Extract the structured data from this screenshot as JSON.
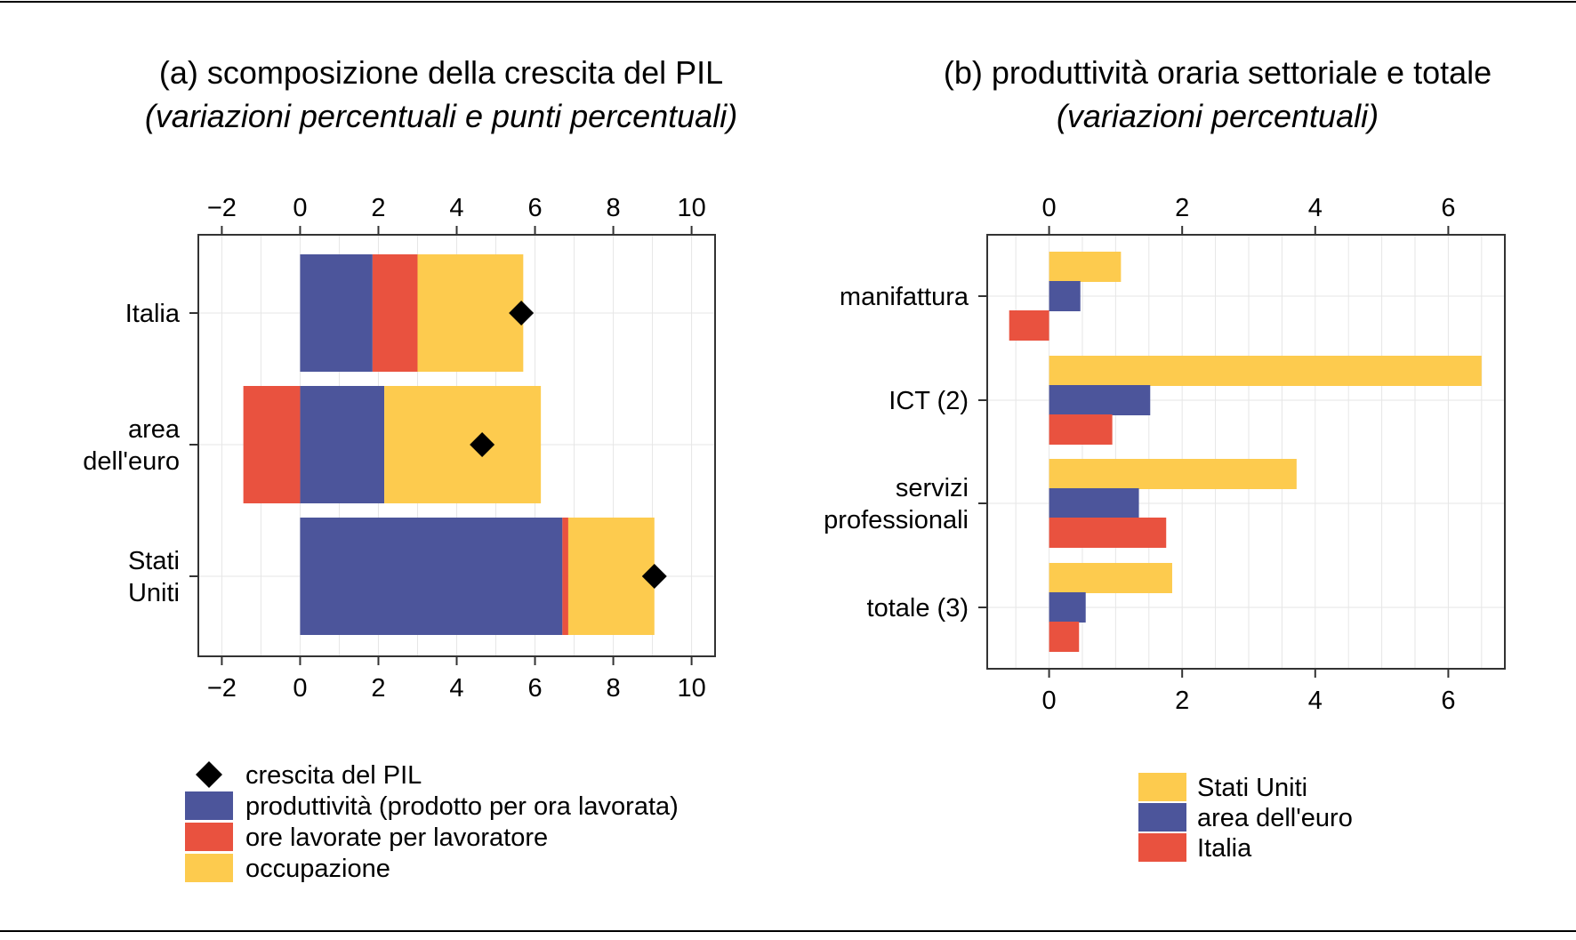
{
  "colors": {
    "blue": "#4C559B",
    "red": "#E9523F",
    "yellow": "#FDCB4E",
    "black": "#000000",
    "grid": "#E6E6E6"
  },
  "chart_data": [
    {
      "type": "bar",
      "stacked": true,
      "orientation": "horizontal",
      "title": "(a) scomposizione della crescita del PIL",
      "subtitle": "(variazioni percentuali e punti percentuali)",
      "categories": [
        [
          "Italia"
        ],
        [
          "area",
          "dell'euro"
        ],
        [
          "Stati",
          "Uniti"
        ]
      ],
      "series": [
        {
          "name": "produttività (prodotto per ora lavorata)",
          "color": "blue",
          "values": [
            1.85,
            2.15,
            6.7
          ]
        },
        {
          "name": "ore lavorate per lavoratore",
          "color": "red",
          "values": [
            1.15,
            -1.45,
            0.15
          ]
        },
        {
          "name": "occupazione",
          "color": "yellow",
          "values": [
            2.7,
            4.0,
            2.2
          ]
        }
      ],
      "markers": {
        "name": "crescita del PIL",
        "shape": "diamond",
        "values": [
          5.65,
          4.65,
          9.05
        ]
      },
      "xlim": [
        -2.6,
        10.6
      ],
      "xticks": [
        -2,
        0,
        2,
        4,
        6,
        8,
        10
      ],
      "xtick_labels": [
        "−2",
        "0",
        "2",
        "4",
        "6",
        "8",
        "10"
      ],
      "xlabel": "",
      "ylabel": "",
      "grid": true,
      "legend": {
        "position": "bottom",
        "items": [
          {
            "label": "crescita del PIL",
            "kind": "marker",
            "color": "black"
          },
          {
            "label": "produttività (prodotto per ora lavorata)",
            "kind": "swatch",
            "color": "blue"
          },
          {
            "label": "ore lavorate per lavoratore",
            "kind": "swatch",
            "color": "red"
          },
          {
            "label": "occupazione",
            "kind": "swatch",
            "color": "yellow"
          }
        ]
      }
    },
    {
      "type": "bar",
      "orientation": "horizontal",
      "grouped": true,
      "title": "(b) produttività oraria settoriale e totale",
      "subtitle": "(variazioni percentuali)",
      "categories": [
        [
          "manifattura"
        ],
        [
          "ICT (2)"
        ],
        [
          "servizi",
          "professionali"
        ],
        [
          "totale (3)"
        ]
      ],
      "series": [
        {
          "name": "Stati Uniti",
          "color": "yellow",
          "values": [
            1.08,
            6.5,
            3.72,
            1.85
          ]
        },
        {
          "name": "area dell'euro",
          "color": "blue",
          "values": [
            0.47,
            1.52,
            1.35,
            0.55
          ]
        },
        {
          "name": "Italia",
          "color": "red",
          "values": [
            -0.6,
            0.95,
            1.76,
            0.45
          ]
        }
      ],
      "xlim": [
        -0.93,
        6.85
      ],
      "xticks": [
        0,
        2,
        4,
        6
      ],
      "xtick_labels": [
        "0",
        "2",
        "4",
        "6"
      ],
      "xlabel": "",
      "ylabel": "",
      "grid": true,
      "legend": {
        "position": "bottom",
        "items": [
          {
            "label": "Stati Uniti",
            "kind": "swatch",
            "color": "yellow"
          },
          {
            "label": "area dell'euro",
            "kind": "swatch",
            "color": "blue"
          },
          {
            "label": "Italia",
            "kind": "swatch",
            "color": "red"
          }
        ]
      }
    }
  ]
}
